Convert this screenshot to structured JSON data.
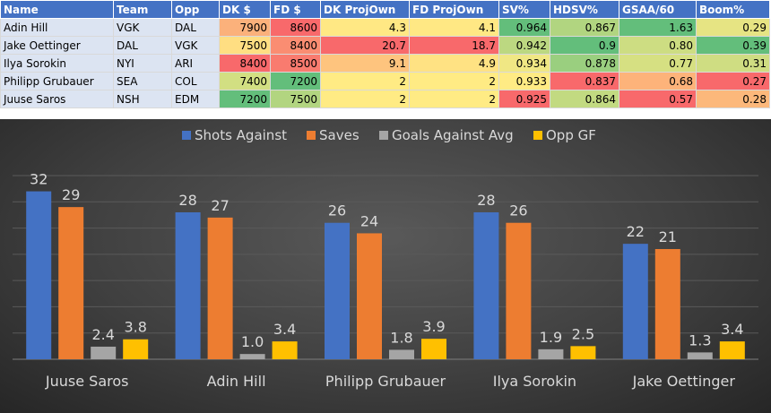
{
  "table": {
    "headers": [
      "Name",
      "Team",
      "Opp",
      "DK $",
      "FD $",
      "DK ProjOwn",
      "FD ProjOwn",
      "SV%",
      "HDSV%",
      "GSAA/60",
      "Boom%"
    ],
    "rows": [
      {
        "cells": [
          "Adin Hill",
          "VGK",
          "DAL",
          "7900",
          "8600",
          "4.3",
          "4.1",
          "0.964",
          "0.867",
          "1.63",
          "0.29"
        ],
        "colors": [
          "",
          "",
          "",
          "#fbb17b",
          "#f8696b",
          "#ffe884",
          "#ffe884",
          "#63be7b",
          "#b1d580",
          "#63be7b",
          "#e6e483"
        ]
      },
      {
        "cells": [
          "Jake Oettinger",
          "DAL",
          "VGK",
          "7500",
          "8400",
          "20.7",
          "18.7",
          "0.942",
          "0.9",
          "0.80",
          "0.39"
        ],
        "colors": [
          "",
          "",
          "",
          "#ffde82",
          "#fa8d72",
          "#f8696b",
          "#f8696b",
          "#bcd881",
          "#63be7b",
          "#cddd82",
          "#63be7b"
        ]
      },
      {
        "cells": [
          "Ilya Sorokin",
          "NYI",
          "ARI",
          "8400",
          "8500",
          "9.1",
          "4.9",
          "0.934",
          "0.878",
          "0.77",
          "0.31"
        ],
        "colors": [
          "",
          "",
          "",
          "#f8696b",
          "#f97b6f",
          "#fec47e",
          "#ffe283",
          "#f0e784",
          "#9acf7f",
          "#d6e082",
          "#cfdd82"
        ]
      },
      {
        "cells": [
          "Philipp Grubauer",
          "SEA",
          "COL",
          "7400",
          "7200",
          "2",
          "2",
          "0.933",
          "0.837",
          "0.68",
          "0.27"
        ],
        "colors": [
          "",
          "",
          "",
          "#d2df82",
          "#63be7b",
          "#ffeb84",
          "#ffeb84",
          "#ffeb84",
          "#f8696b",
          "#fdb37a",
          "#f8696b"
        ]
      },
      {
        "cells": [
          "Juuse Saros",
          "NSH",
          "EDM",
          "7200",
          "7500",
          "2",
          "2",
          "0.925",
          "0.864",
          "0.57",
          "0.28"
        ],
        "colors": [
          "",
          "",
          "",
          "#63be7b",
          "#b2d580",
          "#ffeb84",
          "#ffeb84",
          "#f8696b",
          "#c2da81",
          "#f8696b",
          "#fcb87b"
        ]
      }
    ]
  },
  "chart_data": {
    "type": "bar",
    "categories": [
      "Juuse Saros",
      "Adin Hill",
      "Philipp Grubauer",
      "Ilya Sorokin",
      "Jake Oettinger"
    ],
    "series": [
      {
        "name": "Shots Against",
        "values": [
          32,
          28,
          26,
          28,
          22
        ],
        "labels": [
          "32",
          "28",
          "26",
          "28",
          "22"
        ],
        "color": "#4472c4"
      },
      {
        "name": "Saves",
        "values": [
          29,
          27,
          24,
          26,
          21
        ],
        "labels": [
          "29",
          "27",
          "24",
          "26",
          "21"
        ],
        "color": "#ed7d31"
      },
      {
        "name": "Goals Against Avg",
        "values": [
          2.4,
          1.0,
          1.8,
          1.9,
          1.3
        ],
        "labels": [
          "2.4",
          "1.0",
          "1.8",
          "1.9",
          "1.3"
        ],
        "color": "#a5a5a5"
      },
      {
        "name": "Opp GF",
        "values": [
          3.8,
          3.4,
          3.9,
          2.5,
          3.4
        ],
        "labels": [
          "3.8",
          "3.4",
          "3.9",
          "2.5",
          "3.4"
        ],
        "color": "#ffc000"
      }
    ],
    "ylim": [
      0,
      35
    ],
    "grid": true,
    "legend": "top"
  }
}
